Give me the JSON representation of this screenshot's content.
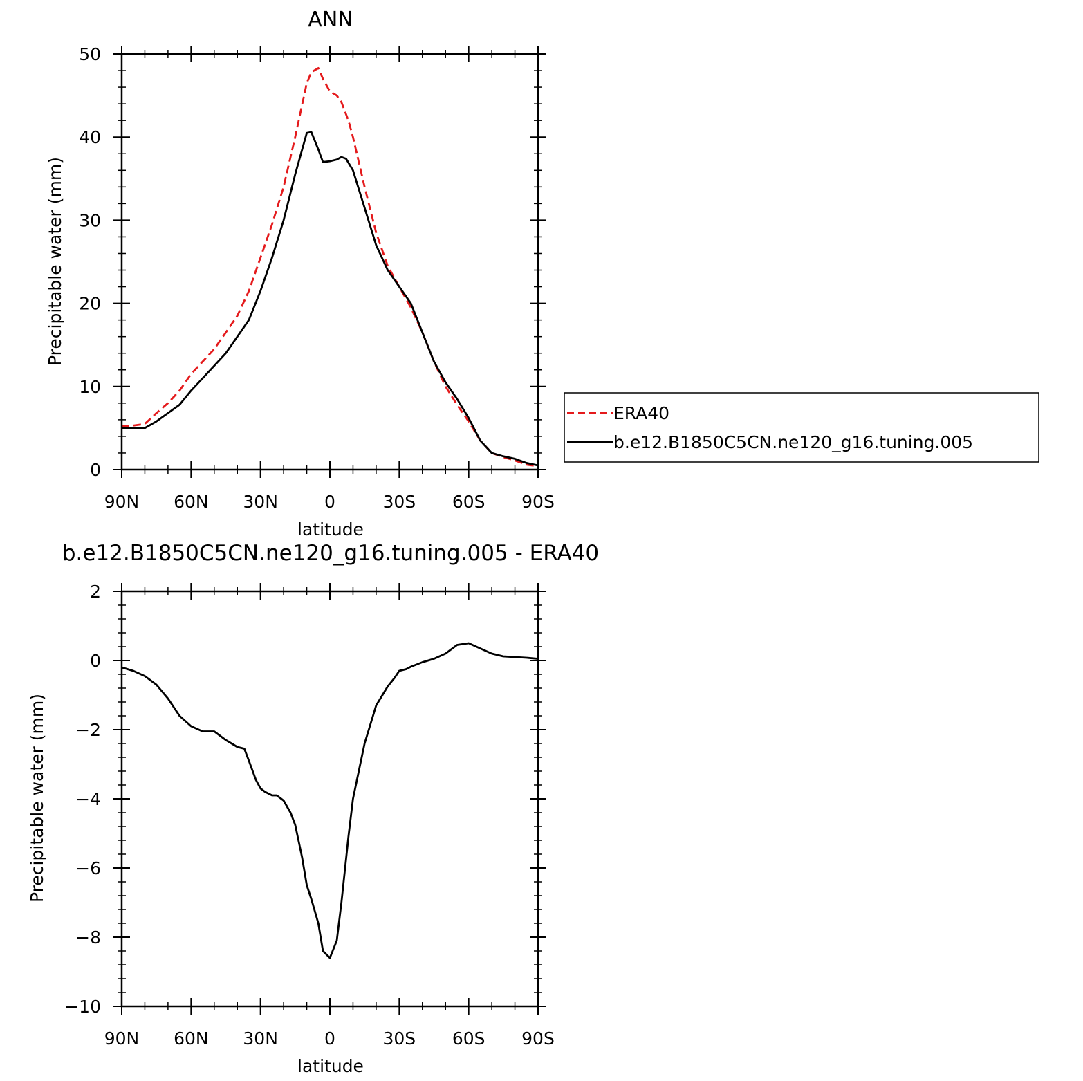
{
  "chart_data": [
    {
      "type": "line",
      "title": "ANN",
      "xlabel": "latitude",
      "ylabel": "Precipitable water (mm)",
      "xlim": [
        -90,
        90
      ],
      "ylim": [
        0,
        50
      ],
      "x_tick_values": [
        -90,
        -60,
        -30,
        0,
        30,
        60,
        90
      ],
      "x_tick_labels": [
        "90N",
        "60N",
        "30N",
        "0",
        "30S",
        "60S",
        "90S"
      ],
      "y_tick_values": [
        0,
        10,
        20,
        30,
        40,
        50
      ],
      "y_tick_labels": [
        "0",
        "10",
        "20",
        "30",
        "40",
        "50"
      ],
      "grid": false,
      "legend_position": "right",
      "series": [
        {
          "name": "ERA40",
          "color": "#e41a1c",
          "dash": "dashed",
          "x": [
            -90,
            -85,
            -80,
            -75,
            -70,
            -65,
            -60,
            -55,
            -50,
            -45,
            -40,
            -35,
            -30,
            -25,
            -20,
            -15,
            -10,
            -8,
            -5,
            -3,
            0,
            3,
            5,
            8,
            10,
            15,
            20,
            25,
            30,
            35,
            40,
            45,
            50,
            55,
            60,
            65,
            70,
            75,
            80,
            85,
            90
          ],
          "values": [
            5.2,
            5.3,
            5.5,
            6.8,
            8.0,
            9.5,
            11.5,
            13.0,
            14.5,
            16.5,
            18.5,
            21.5,
            25.5,
            29.5,
            34.0,
            40.0,
            46.5,
            47.8,
            48.3,
            47.0,
            45.5,
            45.0,
            44.2,
            42.0,
            40.0,
            34.0,
            28.5,
            24.5,
            22.0,
            19.5,
            16.5,
            13.0,
            10.0,
            7.8,
            5.8,
            3.5,
            2.0,
            1.5,
            1.1,
            0.6,
            0.4
          ]
        },
        {
          "name": "b.e12.B1850C5CN.ne120_g16.tuning.005",
          "color": "#000000",
          "dash": "solid",
          "x": [
            -90,
            -85,
            -80,
            -75,
            -70,
            -65,
            -60,
            -55,
            -50,
            -45,
            -40,
            -35,
            -30,
            -25,
            -20,
            -15,
            -10,
            -8,
            -5,
            -3,
            0,
            3,
            5,
            7,
            10,
            15,
            20,
            25,
            30,
            35,
            40,
            45,
            50,
            55,
            60,
            65,
            70,
            75,
            80,
            85,
            90
          ],
          "values": [
            5.0,
            5.0,
            5.0,
            5.8,
            6.8,
            7.8,
            9.5,
            11.0,
            12.5,
            14.0,
            16.0,
            18.0,
            21.5,
            25.5,
            30.0,
            35.5,
            40.5,
            40.6,
            38.5,
            37.0,
            37.1,
            37.3,
            37.6,
            37.4,
            36.0,
            31.5,
            27.0,
            24.0,
            22.0,
            20.0,
            16.5,
            13.0,
            10.5,
            8.5,
            6.2,
            3.5,
            2.0,
            1.6,
            1.3,
            0.8,
            0.5
          ]
        }
      ]
    },
    {
      "type": "line",
      "title": "b.e12.B1850C5CN.ne120_g16.tuning.005 - ERA40",
      "xlabel": "latitude",
      "ylabel": "Precipitable water (mm)",
      "xlim": [
        -90,
        90
      ],
      "ylim": [
        -10,
        2
      ],
      "x_tick_values": [
        -90,
        -60,
        -30,
        0,
        30,
        60,
        90
      ],
      "x_tick_labels": [
        "90N",
        "60N",
        "30N",
        "0",
        "30S",
        "60S",
        "90S"
      ],
      "y_tick_values": [
        -10,
        -8,
        -6,
        -4,
        -2,
        0,
        2
      ],
      "y_tick_labels": [
        "−10",
        "−8",
        "−6",
        "−4",
        "−2",
        "0",
        "2"
      ],
      "grid": false,
      "series": [
        {
          "color": "#000000",
          "dash": "solid",
          "x": [
            -90,
            -85,
            -80,
            -75,
            -70,
            -65,
            -60,
            -55,
            -50,
            -45,
            -40,
            -37,
            -35,
            -32,
            -30,
            -28,
            -25,
            -23,
            -20,
            -17,
            -15,
            -12,
            -10,
            -8,
            -5,
            -3,
            0,
            3,
            5,
            8,
            10,
            15,
            20,
            25,
            28,
            30,
            33,
            35,
            40,
            45,
            50,
            55,
            60,
            65,
            70,
            75,
            80,
            85,
            90
          ],
          "values": [
            -0.2,
            -0.3,
            -0.45,
            -0.7,
            -1.1,
            -1.6,
            -1.9,
            -2.05,
            -2.05,
            -2.3,
            -2.5,
            -2.55,
            -2.9,
            -3.45,
            -3.7,
            -3.8,
            -3.9,
            -3.9,
            -4.05,
            -4.4,
            -4.75,
            -5.7,
            -6.5,
            -6.9,
            -7.6,
            -8.4,
            -8.6,
            -8.1,
            -7.0,
            -5.1,
            -4.0,
            -2.4,
            -1.3,
            -0.75,
            -0.5,
            -0.3,
            -0.25,
            -0.18,
            -0.05,
            0.05,
            0.2,
            0.45,
            0.5,
            0.35,
            0.2,
            0.12,
            0.1,
            0.08,
            0.05
          ]
        }
      ]
    }
  ]
}
